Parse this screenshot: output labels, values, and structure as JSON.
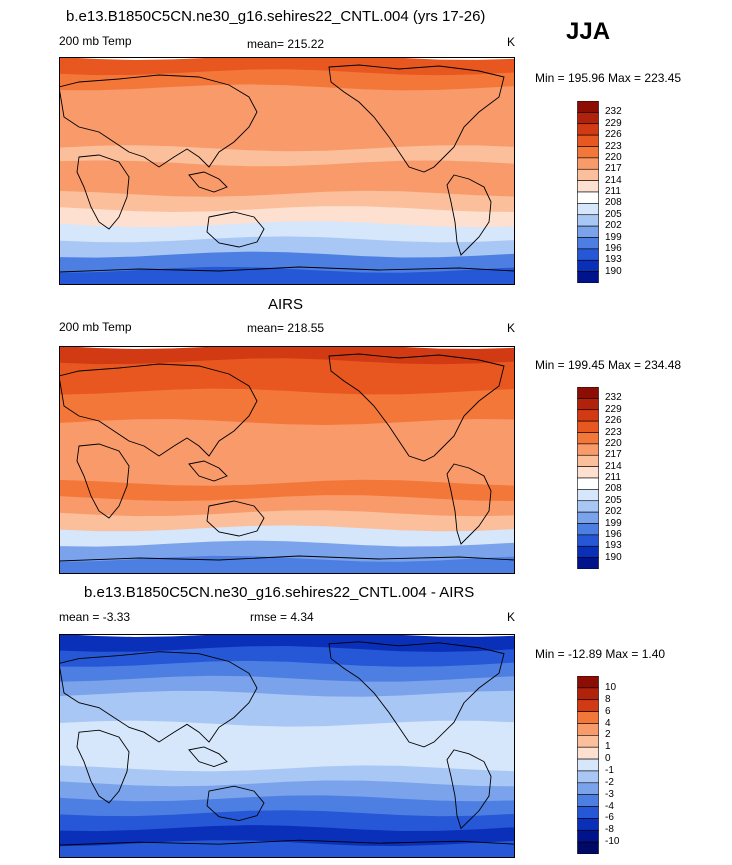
{
  "season": "JJA",
  "panels": [
    {
      "id": "model",
      "title": "b.e13.B1850C5CN.ne30_g16.sehires22_CNTL.004 (yrs 17-26)",
      "left_label": "200 mb Temp",
      "center_label": "mean= 215.22",
      "units": "K",
      "minmax": "Min = 195.96 Max = 223.45",
      "colorbar": {
        "labels": [
          "232",
          "229",
          "226",
          "223",
          "220",
          "217",
          "214",
          "211",
          "208",
          "205",
          "202",
          "199",
          "196",
          "193",
          "190"
        ],
        "colors": [
          "#8c0d04",
          "#b0220b",
          "#d13a13",
          "#e8571f",
          "#f4773a",
          "#f89a6a",
          "#fbbf9c",
          "#fde0cf",
          "#ffffff",
          "#d6e6fb",
          "#a9c7f4",
          "#7aa3ec",
          "#4d7ee2",
          "#2557d6",
          "#0a2fb8",
          "#00138a"
        ]
      },
      "map_bands": [
        "#e8571f",
        "#f4773a",
        "#f89a6a",
        "#f89a6a",
        "#f89a6a",
        "#f89a6a",
        "#fbbf9c",
        "#f89a6a",
        "#f89a6a",
        "#fbbf9c",
        "#fde0cf",
        "#d6e6fb",
        "#a9c7f4",
        "#4d7ee2",
        "#2557d6"
      ]
    },
    {
      "id": "obs",
      "title": "AIRS",
      "left_label": "200 mb Temp",
      "center_label": "mean= 218.55",
      "units": "K",
      "minmax": "Min = 199.45 Max = 234.48",
      "colorbar": {
        "labels": [
          "232",
          "229",
          "226",
          "223",
          "220",
          "217",
          "214",
          "211",
          "208",
          "205",
          "202",
          "199",
          "196",
          "193",
          "190"
        ],
        "colors": [
          "#8c0d04",
          "#b0220b",
          "#d13a13",
          "#e8571f",
          "#f4773a",
          "#f89a6a",
          "#fbbf9c",
          "#fde0cf",
          "#ffffff",
          "#d6e6fb",
          "#a9c7f4",
          "#7aa3ec",
          "#4d7ee2",
          "#2557d6",
          "#0a2fb8",
          "#00138a"
        ]
      },
      "map_bands": [
        "#d13a13",
        "#e8571f",
        "#e8571f",
        "#f4773a",
        "#f4773a",
        "#f89a6a",
        "#f89a6a",
        "#f89a6a",
        "#f89a6a",
        "#f4773a",
        "#f89a6a",
        "#fbbf9c",
        "#d6e6fb",
        "#7aa3ec",
        "#4d7ee2"
      ]
    },
    {
      "id": "diff",
      "title": "b.e13.B1850C5CN.ne30_g16.sehires22_CNTL.004 - AIRS",
      "left_label": "mean =  -3.33",
      "center_label": "rmse =   4.34",
      "units": "K",
      "minmax": "Min = -12.89 Max =   1.40",
      "colorbar": {
        "labels": [
          "10",
          "8",
          "6",
          "4",
          "2",
          "1",
          "0",
          "-1",
          "-2",
          "-3",
          "-4",
          "-6",
          "-8",
          "-10"
        ],
        "colors": [
          "#8c0d04",
          "#b0220b",
          "#d13a13",
          "#f4773a",
          "#f89a6a",
          "#fbbf9c",
          "#fde0cf",
          "#d6e6fb",
          "#a9c7f4",
          "#7aa3ec",
          "#4d7ee2",
          "#2557d6",
          "#0a2fb8",
          "#00138a",
          "#000a66"
        ]
      },
      "map_bands": [
        "#0a2fb8",
        "#2557d6",
        "#4d7ee2",
        "#7aa3ec",
        "#a9c7f4",
        "#a9c7f4",
        "#d6e6fb",
        "#d6e6fb",
        "#d6e6fb",
        "#a9c7f4",
        "#7aa3ec",
        "#4d7ee2",
        "#2557d6",
        "#0a2fb8",
        "#2557d6"
      ]
    }
  ]
}
